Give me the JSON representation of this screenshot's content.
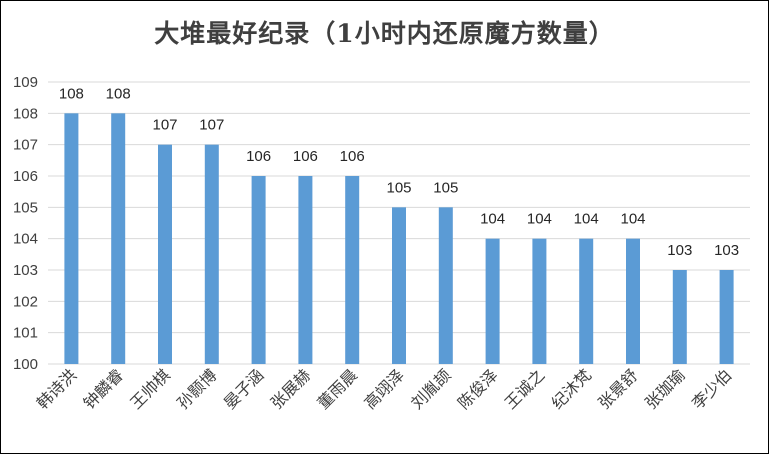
{
  "chart_data": {
    "type": "bar",
    "title": "大堆最好纪录（1小时内还原魔方数量）",
    "categories": [
      "韩诗洪",
      "钟麟睿",
      "王帅棋",
      "孙颢博",
      "晏子涵",
      "张展赫",
      "董雨晨",
      "高翊泽",
      "刘胤颉",
      "陈俊泽",
      "王诚之",
      "纪沐梵",
      "张景舒",
      "张珈瑜",
      "李少伯"
    ],
    "values": [
      108,
      108,
      107,
      107,
      106,
      106,
      106,
      105,
      105,
      104,
      104,
      104,
      104,
      103,
      103
    ],
    "ylim": [
      100,
      109
    ],
    "yticks": [
      100,
      101,
      102,
      103,
      104,
      105,
      106,
      107,
      108,
      109
    ],
    "xlabel": "",
    "ylabel": "",
    "grid": true,
    "legend": "none",
    "bar_color": "#5b9bd5",
    "grid_color": "#d9d9d9"
  }
}
